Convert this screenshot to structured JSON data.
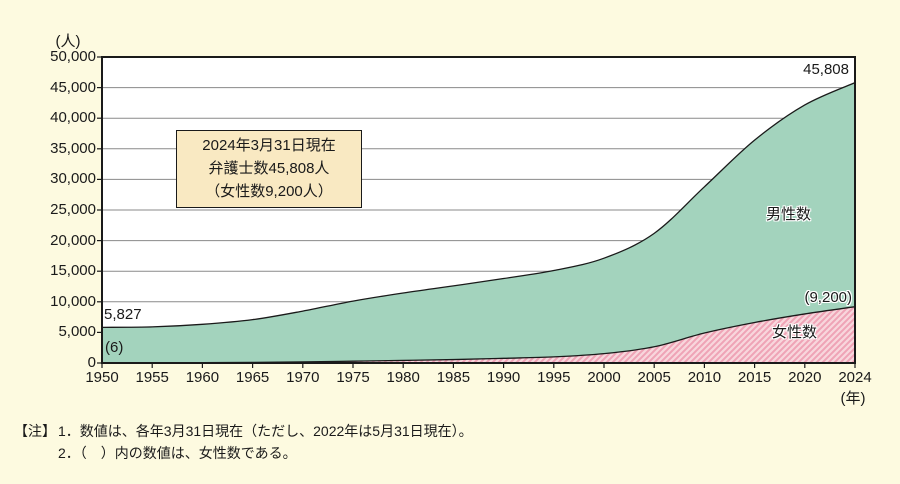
{
  "page": {
    "background": "#FDFAE0",
    "box_background": "#F9E9C2"
  },
  "axis": {
    "y_unit": "(人)",
    "x_unit": "(年)"
  },
  "chart_data": {
    "type": "area",
    "stacked": true,
    "title": "",
    "categories": [
      "1950",
      "1955",
      "1960",
      "1965",
      "1970",
      "1975",
      "1980",
      "1985",
      "1990",
      "1995",
      "2000",
      "2005",
      "2010",
      "2015",
      "2020",
      "2024"
    ],
    "series": [
      {
        "name": "女性数",
        "values": [
          6,
          44,
          51,
          91,
          180,
          298,
          420,
          560,
          766,
          996,
          1530,
          2648,
          4896,
          6618,
          8017,
          9200
        ]
      },
      {
        "name": "男性数",
        "values": [
          5821,
          5855,
          6270,
          6991,
          8298,
          9817,
          11021,
          12044,
          13034,
          14112,
          15596,
          18537,
          23893,
          29797,
          34147,
          36608
        ]
      }
    ],
    "totals": [
      5827,
      5899,
      6321,
      7082,
      8478,
      10115,
      11441,
      12604,
      13800,
      15108,
      17126,
      21185,
      28789,
      36415,
      42164,
      45808
    ],
    "ylim": [
      0,
      50000
    ],
    "yticks": [
      0,
      5000,
      10000,
      15000,
      20000,
      25000,
      30000,
      35000,
      40000,
      45000,
      50000
    ],
    "ytick_labels": [
      "0",
      "5,000",
      "10,000",
      "15,000",
      "20,000",
      "25,000",
      "30,000",
      "35,000",
      "40,000",
      "45,000",
      "50,000"
    ],
    "grid": true,
    "legend": "inline-area-labels",
    "colors": {
      "male_fill": "#A3D3BD",
      "female_fill": "#F8D6DC",
      "female_stripe": "#EFA3B6",
      "line": "#1A1A1A",
      "grid": "#8A8A8A"
    }
  },
  "labels": {
    "total_start": "5,827",
    "female_start": "(6)",
    "total_end": "45,808",
    "female_end": "(9,200)",
    "male_area": "男性数",
    "female_area": "女性数"
  },
  "annotation_box": {
    "lines": [
      "2024年3月31日現在",
      "弁護士数45,808人",
      "（女性数9,200人）"
    ]
  },
  "notes": {
    "prefix": "【注】",
    "line1": "1．数値は、各年3月31日現在（ただし、2022年は5月31日現在）。",
    "line2": "2．（　）内の数値は、女性数である。"
  }
}
